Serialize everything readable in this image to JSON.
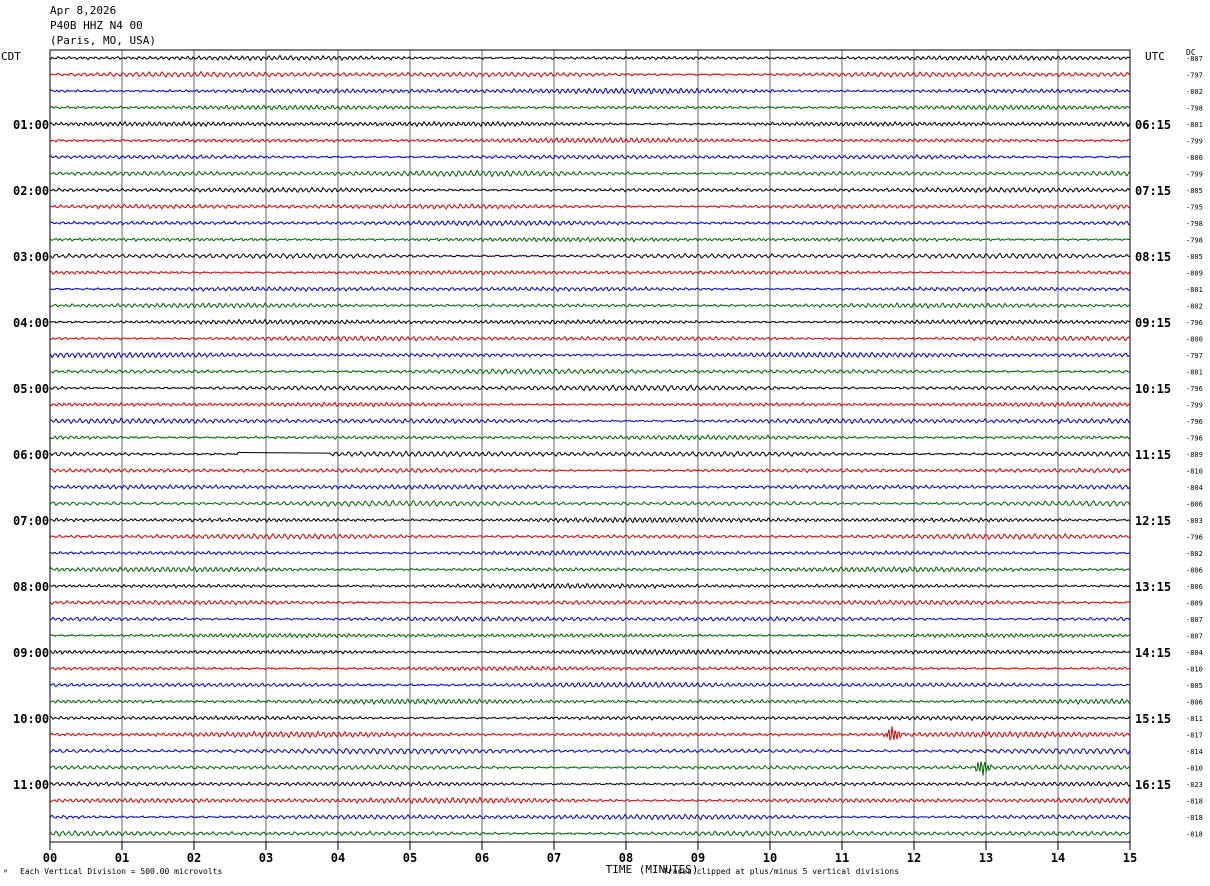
{
  "header": {
    "date": "Apr 8,2026",
    "station": "P40B HHZ N4 00",
    "location": "(Paris, MO, USA)"
  },
  "left_tz": "CDT",
  "right_tz": "UTC",
  "dc_label": "DC",
  "footer": {
    "scale_note": "Each Vertical Division =  500.00 microvolts",
    "clip_note": "Traces clipped at plus/minus 5 vertical divisions",
    "corner_mark": "ᴹ"
  },
  "chart_data": {
    "type": "line",
    "title": "",
    "xlabel": "TIME (MINUTES)",
    "ylabel": "",
    "x_ticks": [
      "00",
      "01",
      "02",
      "03",
      "04",
      "05",
      "06",
      "07",
      "08",
      "09",
      "10",
      "11",
      "12",
      "13",
      "14",
      "15"
    ],
    "xlim": [
      0,
      15
    ],
    "trace_colors": [
      "#000000",
      "#d40000",
      "#0000c8",
      "#006400"
    ],
    "left_hour_labels": [
      "01:00",
      "02:00",
      "03:00",
      "04:00",
      "05:00",
      "06:00",
      "07:00",
      "08:00",
      "09:00",
      "10:00",
      "11:00"
    ],
    "right_hour_labels": [
      "06:15",
      "07:15",
      "08:15",
      "09:15",
      "10:15",
      "11:15",
      "12:15",
      "13:15",
      "14:15",
      "15:15",
      "16:15"
    ],
    "dc_offsets": [
      "-807",
      "-797",
      "-802",
      "-798",
      "-801",
      "-799",
      "-800",
      "-799",
      "-805",
      "-795",
      "-798",
      "-798",
      "-805",
      "-809",
      "-801",
      "-802",
      "-796",
      "-800",
      "-797",
      "-801",
      "-796",
      "-799",
      "-796",
      "-796",
      "-809",
      "-810",
      "-804",
      "-806",
      "-803",
      "-796",
      "-802",
      "-806",
      "-806",
      "-809",
      "-807",
      "-807",
      "-804",
      "-810",
      "-805",
      "-806",
      "-811",
      "-817",
      "-814",
      "-810",
      "-823",
      "-818",
      "-818",
      "-818"
    ],
    "events": [
      {
        "trace_index": 41,
        "minute": 11.7,
        "amplitude": "large",
        "color": "red"
      },
      {
        "trace_index": 43,
        "minute": 12.95,
        "amplitude": "large",
        "color": "green"
      }
    ],
    "flat_segment": {
      "trace_index": 24,
      "from_minute": 2.6,
      "to_minute": 3.9
    }
  }
}
